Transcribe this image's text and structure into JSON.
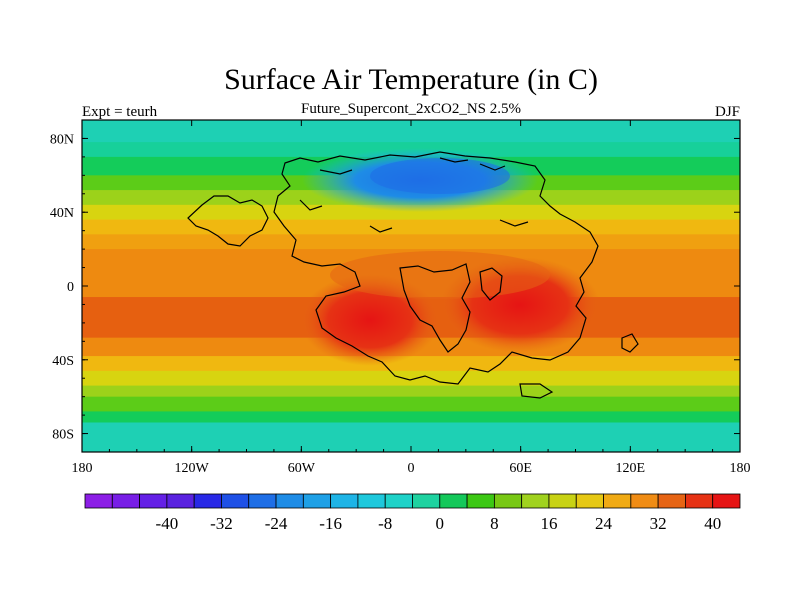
{
  "title": "Surface Air Temperature (in C)",
  "subtitle": "Future_Supercont_2xCO2_NS 2.5%",
  "left_label": "Expt = teurh",
  "right_label": "DJF",
  "map": {
    "lon_range": [
      -180,
      180
    ],
    "lat_range": [
      -90,
      90
    ],
    "x_ticks": [
      {
        "value": -180,
        "label": "180"
      },
      {
        "value": -120,
        "label": "120W"
      },
      {
        "value": -60,
        "label": "60W"
      },
      {
        "value": 0,
        "label": "0"
      },
      {
        "value": 60,
        "label": "60E"
      },
      {
        "value": 120,
        "label": "120E"
      },
      {
        "value": 180,
        "label": "180"
      }
    ],
    "y_ticks": [
      {
        "value": 80,
        "label": "80N"
      },
      {
        "value": 40,
        "label": "40N"
      },
      {
        "value": 0,
        "label": "0"
      },
      {
        "value": -40,
        "label": "40S"
      },
      {
        "value": -80,
        "label": "80S"
      }
    ],
    "temperature_bands": [
      {
        "lat_from": 90,
        "lat_to": 78,
        "color": "#1ed0b4"
      },
      {
        "lat_from": 78,
        "lat_to": 70,
        "color": "#17d09a"
      },
      {
        "lat_from": 70,
        "lat_to": 60,
        "color": "#14cc5a"
      },
      {
        "lat_from": 60,
        "lat_to": 52,
        "color": "#5ccc18"
      },
      {
        "lat_from": 52,
        "lat_to": 44,
        "color": "#9cd21a"
      },
      {
        "lat_from": 44,
        "lat_to": 36,
        "color": "#d8d410"
      },
      {
        "lat_from": 36,
        "lat_to": 28,
        "color": "#f0b810"
      },
      {
        "lat_from": 28,
        "lat_to": 20,
        "color": "#f0a010"
      },
      {
        "lat_from": 20,
        "lat_to": -6,
        "color": "#ee8a10"
      },
      {
        "lat_from": -6,
        "lat_to": -28,
        "color": "#e66010"
      },
      {
        "lat_from": -28,
        "lat_to": -38,
        "color": "#ee8a10"
      },
      {
        "lat_from": -38,
        "lat_to": -46,
        "color": "#f0b810"
      },
      {
        "lat_from": -46,
        "lat_to": -54,
        "color": "#d8d410"
      },
      {
        "lat_from": -54,
        "lat_to": -60,
        "color": "#9cd21a"
      },
      {
        "lat_from": -60,
        "lat_to": -68,
        "color": "#5ccc18"
      },
      {
        "lat_from": -68,
        "lat_to": -74,
        "color": "#14cc5a"
      },
      {
        "lat_from": -74,
        "lat_to": -90,
        "color": "#1ed0b4"
      }
    ]
  },
  "colorbar": {
    "colors": [
      "#8c1ee6",
      "#781ee6",
      "#6420e6",
      "#5a22e0",
      "#2828e6",
      "#1e50e6",
      "#1e6ee6",
      "#1e8ce6",
      "#1ea0e6",
      "#1eb4e6",
      "#1ec8dc",
      "#1ed2c8",
      "#1ed2a0",
      "#14c85a",
      "#3cc814",
      "#78c814",
      "#a0d21e",
      "#c8d214",
      "#e6c814",
      "#f0aa14",
      "#f08c14",
      "#e66414",
      "#e63214",
      "#e61414"
    ],
    "labels": [
      {
        "after_box": 3,
        "label": "-40"
      },
      {
        "after_box": 5,
        "label": "-32"
      },
      {
        "after_box": 7,
        "label": "-24"
      },
      {
        "after_box": 9,
        "label": "-16"
      },
      {
        "after_box": 11,
        "label": "-8"
      },
      {
        "after_box": 13,
        "label": "0"
      },
      {
        "after_box": 15,
        "label": "8"
      },
      {
        "after_box": 17,
        "label": "16"
      },
      {
        "after_box": 19,
        "label": "24"
      },
      {
        "after_box": 21,
        "label": "32"
      },
      {
        "after_box": 23,
        "label": "40"
      }
    ]
  }
}
